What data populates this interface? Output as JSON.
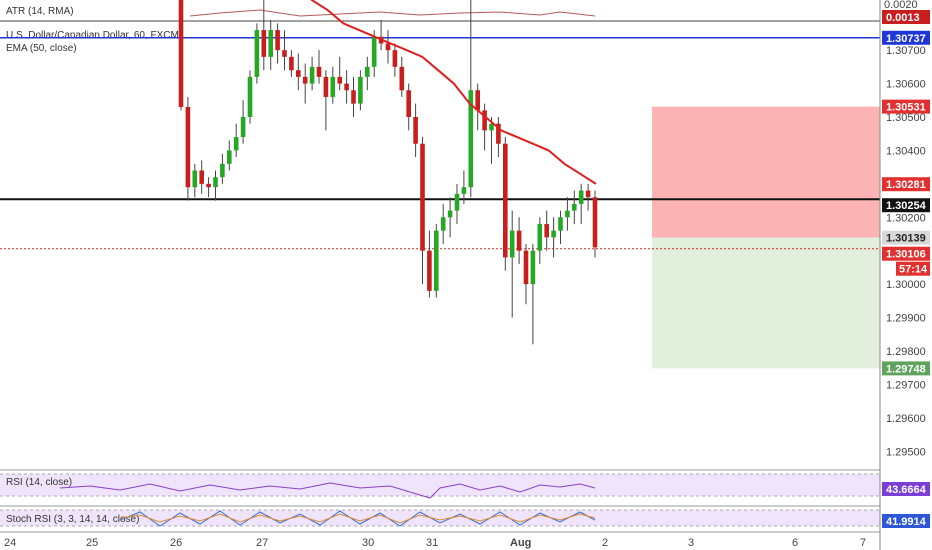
{
  "colors": {
    "bull": "#26a826",
    "bear": "#c81e1e",
    "ema": "#e01e1e",
    "price_scale_bg": "#ffffff",
    "blue_level": "#1f37d6",
    "black_level": "#111111",
    "red_dotted": "#e02222",
    "risk_zone": "#fbb3b3",
    "reward_zone": "#e2efdc",
    "rsi_band": "#efe4fb",
    "stoch_band": "#efe4fb"
  },
  "indicators": {
    "atr": {
      "label": "ATR (14, RMA)",
      "value": "0.0013",
      "ticks": [
        "0.0020"
      ]
    },
    "main": {
      "symbol": "U.S. Dollar/Canadian Dollar, 60, FXCM",
      "ema": "EMA (50, close)"
    },
    "rsi": {
      "label": "RSI (14, close)",
      "value": "43.6664"
    },
    "stoch": {
      "label": "Stoch RSI (3, 3, 14, 14, close)",
      "value": "41.9914"
    }
  },
  "price_scale": {
    "ticks": [
      "1.30800",
      "1.30700",
      "1.30600",
      "1.30500",
      "1.30400",
      "1.30300",
      "1.30200",
      "1.30100",
      "1.30000",
      "1.29900",
      "1.29800",
      "1.29700",
      "1.29600",
      "1.29500"
    ],
    "badges": {
      "blue": "1.30737",
      "stop": "1.30531",
      "ema": "1.30281",
      "black": "1.30254",
      "entry": "1.30139",
      "current": "1.30106",
      "countdown": "57:14",
      "target": "1.29748"
    }
  },
  "time_axis": {
    "labels": [
      "24",
      "25",
      "26",
      "27",
      "30",
      "31",
      "Aug",
      "2",
      "3",
      "6",
      "7"
    ]
  },
  "chart_data": {
    "type": "candlestick",
    "symbol": "U.S. Dollar/Canadian Dollar, 60, FXCM",
    "ylim": [
      1.2945,
      1.3085
    ],
    "levels": {
      "resistance": 1.30737,
      "support": 1.30254,
      "current": 1.30106
    },
    "position": {
      "stop": 1.30531,
      "entry": 1.30139,
      "target": 1.29748
    },
    "candles": [
      [
        1.3086,
        1.3086,
        1.3052,
        1.3053
      ],
      [
        1.3053,
        1.3056,
        1.3025,
        1.3029
      ],
      [
        1.3029,
        1.3036,
        1.3026,
        1.3034
      ],
      [
        1.3034,
        1.3037,
        1.3027,
        1.303
      ],
      [
        1.303,
        1.3032,
        1.3026,
        1.3029
      ],
      [
        1.3029,
        1.3034,
        1.3025,
        1.3032
      ],
      [
        1.3032,
        1.3039,
        1.303,
        1.3036
      ],
      [
        1.3036,
        1.3043,
        1.3034,
        1.304
      ],
      [
        1.304,
        1.3048,
        1.3038,
        1.3044
      ],
      [
        1.3044,
        1.3055,
        1.3042,
        1.305
      ],
      [
        1.305,
        1.3064,
        1.3048,
        1.3062
      ],
      [
        1.3062,
        1.3078,
        1.306,
        1.3076
      ],
      [
        1.3076,
        1.3088,
        1.3064,
        1.3068
      ],
      [
        1.3068,
        1.3079,
        1.3064,
        1.3076
      ],
      [
        1.3076,
        1.3078,
        1.3066,
        1.307
      ],
      [
        1.307,
        1.3076,
        1.3064,
        1.3068
      ],
      [
        1.3068,
        1.307,
        1.3062,
        1.3064
      ],
      [
        1.3064,
        1.3069,
        1.3058,
        1.3062
      ],
      [
        1.3062,
        1.3066,
        1.3054,
        1.306
      ],
      [
        1.306,
        1.3068,
        1.3058,
        1.3065
      ],
      [
        1.3065,
        1.307,
        1.306,
        1.3062
      ],
      [
        1.3062,
        1.3064,
        1.3046,
        1.3056
      ],
      [
        1.3056,
        1.3065,
        1.3054,
        1.3062
      ],
      [
        1.3062,
        1.3068,
        1.3058,
        1.306
      ],
      [
        1.306,
        1.3064,
        1.3054,
        1.3058
      ],
      [
        1.3058,
        1.3062,
        1.305,
        1.3054
      ],
      [
        1.3054,
        1.3064,
        1.3052,
        1.3062
      ],
      [
        1.3062,
        1.3068,
        1.3058,
        1.3065
      ],
      [
        1.3065,
        1.3076,
        1.3062,
        1.3074
      ],
      [
        1.3074,
        1.3079,
        1.307,
        1.3072
      ],
      [
        1.3072,
        1.3076,
        1.3066,
        1.307
      ],
      [
        1.307,
        1.3072,
        1.3062,
        1.3065
      ],
      [
        1.3065,
        1.3068,
        1.3056,
        1.3058
      ],
      [
        1.3058,
        1.306,
        1.3046,
        1.305
      ],
      [
        1.305,
        1.3054,
        1.3038,
        1.3042
      ],
      [
        1.3042,
        1.3044,
        1.3,
        1.301
      ],
      [
        1.301,
        1.3016,
        1.2996,
        1.2998
      ],
      [
        1.2998,
        1.3018,
        1.2996,
        1.3016
      ],
      [
        1.3016,
        1.3024,
        1.3012,
        1.302
      ],
      [
        1.302,
        1.3026,
        1.3014,
        1.3022
      ],
      [
        1.3022,
        1.303,
        1.3018,
        1.3027
      ],
      [
        1.3027,
        1.3034,
        1.3024,
        1.3029
      ],
      [
        1.3029,
        1.3088,
        1.3026,
        1.3058
      ],
      [
        1.3058,
        1.306,
        1.3046,
        1.3052
      ],
      [
        1.3052,
        1.3054,
        1.304,
        1.3046
      ],
      [
        1.3046,
        1.305,
        1.3036,
        1.3048
      ],
      [
        1.3048,
        1.305,
        1.3038,
        1.3042
      ],
      [
        1.3042,
        1.3044,
        1.3004,
        1.3008
      ],
      [
        1.3008,
        1.3022,
        1.299,
        1.3016
      ],
      [
        1.3016,
        1.302,
        1.3006,
        1.301
      ],
      [
        1.301,
        1.3012,
        1.2994,
        1.3
      ],
      [
        1.3,
        1.3012,
        1.2982,
        1.301
      ],
      [
        1.301,
        1.302,
        1.3006,
        1.3018
      ],
      [
        1.3018,
        1.3022,
        1.301,
        1.3014
      ],
      [
        1.3014,
        1.302,
        1.3008,
        1.3016
      ],
      [
        1.3016,
        1.3022,
        1.3012,
        1.302
      ],
      [
        1.302,
        1.3026,
        1.3016,
        1.3022
      ],
      [
        1.3022,
        1.3028,
        1.3018,
        1.3024
      ],
      [
        1.3024,
        1.303,
        1.3018,
        1.3028
      ],
      [
        1.3028,
        1.303,
        1.3022,
        1.3026
      ],
      [
        1.3026,
        1.3028,
        1.3008,
        1.3011
      ]
    ],
    "ema": [
      [
        1.309,
        1.3085
      ],
      [
        1.3082,
        1.3078
      ],
      [
        1.3076,
        1.3074
      ],
      [
        1.3072,
        1.307
      ],
      [
        1.3068,
        1.3064
      ],
      [
        1.306,
        1.3054
      ],
      [
        1.305,
        1.3046
      ],
      [
        1.3044,
        1.3042
      ],
      [
        1.304,
        1.3036
      ],
      [
        1.3033,
        1.303
      ]
    ]
  }
}
